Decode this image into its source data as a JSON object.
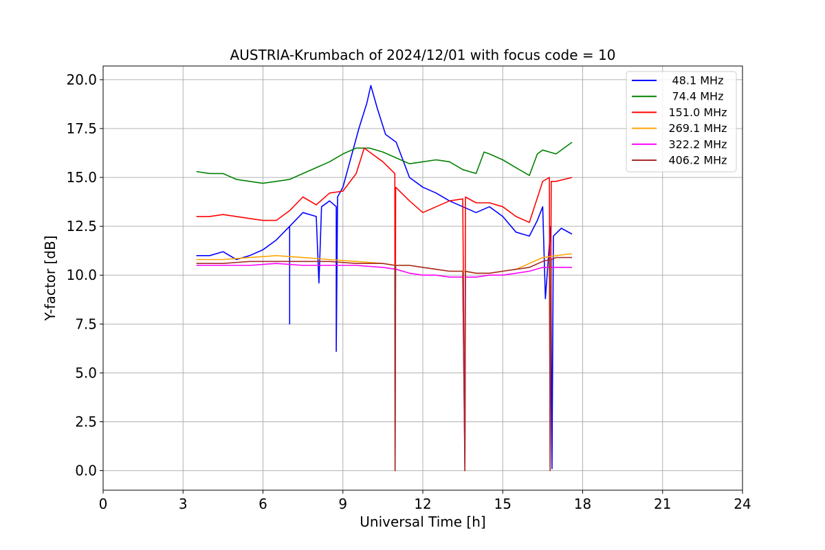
{
  "chart_data": {
    "type": "line",
    "title": "AUSTRIA-Krumbach of 2024/12/01 with focus code = 10",
    "xlabel": "Universal Time [h]",
    "ylabel": "Y-factor [dB]",
    "xlim": [
      0,
      24
    ],
    "ylim": [
      -1,
      20.7
    ],
    "xticks": [
      0,
      3,
      6,
      9,
      12,
      15,
      18,
      21,
      24
    ],
    "xtick_labels": [
      "0",
      "3",
      "6",
      "9",
      "12",
      "15",
      "18",
      "21",
      "24"
    ],
    "yticks": [
      0,
      2.5,
      5,
      7.5,
      10,
      12.5,
      15,
      17.5,
      20
    ],
    "ytick_labels": [
      "0.0",
      "2.5",
      "5.0",
      "7.5",
      "10.0",
      "12.5",
      "15.0",
      "17.5",
      "20.0"
    ],
    "grid": true,
    "legend_position": "top-right",
    "series": [
      {
        "name": "48.1 MHz",
        "color": "#0000ff",
        "x": [
          3.5,
          4.0,
          4.5,
          5.0,
          5.5,
          6.0,
          6.5,
          7.0,
          7.0,
          7.0,
          7.5,
          8.0,
          8.1,
          8.2,
          8.5,
          8.75,
          8.75,
          8.8,
          9.0,
          9.3,
          9.6,
          9.9,
          10.05,
          10.3,
          10.6,
          11.0,
          11.5,
          12.0,
          12.5,
          13.0,
          13.5,
          14.0,
          14.5,
          15.0,
          15.5,
          16.0,
          16.3,
          16.5,
          16.6,
          16.8,
          16.85,
          16.9,
          17.2,
          17.6
        ],
        "y": [
          11.0,
          11.0,
          11.2,
          10.8,
          11.0,
          11.3,
          11.8,
          12.5,
          7.5,
          12.5,
          13.2,
          13.0,
          9.6,
          13.5,
          13.8,
          13.5,
          6.1,
          14.0,
          14.5,
          16.0,
          17.5,
          18.8,
          19.7,
          18.5,
          17.2,
          16.8,
          15.0,
          14.5,
          14.2,
          13.8,
          13.5,
          13.2,
          13.5,
          13.0,
          12.2,
          12.0,
          12.8,
          13.5,
          8.8,
          12.5,
          0.1,
          12.0,
          12.4,
          12.1
        ]
      },
      {
        "name": "74.4 MHz",
        "color": "#008000",
        "x": [
          3.5,
          4.0,
          4.5,
          5.0,
          5.5,
          6.0,
          6.5,
          7.0,
          7.5,
          8.0,
          8.5,
          9.0,
          9.5,
          10.0,
          10.5,
          11.0,
          11.5,
          12.0,
          12.5,
          13.0,
          13.5,
          14.0,
          14.3,
          14.5,
          15.0,
          15.5,
          16.0,
          16.3,
          16.5,
          17.0,
          17.6
        ],
        "y": [
          15.3,
          15.2,
          15.2,
          14.9,
          14.8,
          14.7,
          14.8,
          14.9,
          15.2,
          15.5,
          15.8,
          16.2,
          16.5,
          16.5,
          16.3,
          16.0,
          15.7,
          15.8,
          15.9,
          15.8,
          15.4,
          15.2,
          16.3,
          16.2,
          15.9,
          15.5,
          15.1,
          16.2,
          16.4,
          16.2,
          16.8
        ]
      },
      {
        "name": "151.0 MHz",
        "color": "#ff0000",
        "x": [
          3.5,
          4.0,
          4.5,
          5.0,
          5.5,
          6.0,
          6.5,
          7.0,
          7.5,
          8.0,
          8.5,
          9.0,
          9.5,
          9.8,
          10.0,
          10.5,
          10.95,
          10.96,
          10.98,
          11.5,
          12.0,
          12.5,
          13.0,
          13.5,
          13.58,
          13.6,
          14.0,
          14.5,
          15.0,
          15.5,
          16.0,
          16.5,
          16.75,
          16.78,
          16.82,
          17.0,
          17.6
        ],
        "y": [
          13.0,
          13.0,
          13.1,
          13.0,
          12.9,
          12.8,
          12.8,
          13.3,
          14.0,
          13.6,
          14.2,
          14.3,
          15.2,
          16.5,
          16.3,
          15.8,
          15.2,
          0.0,
          14.5,
          13.8,
          13.2,
          13.5,
          13.8,
          13.9,
          0.0,
          14.0,
          13.7,
          13.7,
          13.5,
          13.0,
          12.7,
          14.8,
          15.0,
          0.2,
          14.8,
          14.8,
          15.0
        ]
      },
      {
        "name": "269.1 MHz",
        "color": "#ffa500",
        "x": [
          3.5,
          4.5,
          5.5,
          6.5,
          7.5,
          8.5,
          9.5,
          10.5,
          11.0,
          11.5,
          12.0,
          12.5,
          13.0,
          13.5,
          14.0,
          14.5,
          15.0,
          15.5,
          16.0,
          16.5,
          17.0,
          17.6
        ],
        "y": [
          10.8,
          10.8,
          10.9,
          11.0,
          10.9,
          10.8,
          10.7,
          10.6,
          10.5,
          10.5,
          10.4,
          10.3,
          10.2,
          10.2,
          10.1,
          10.1,
          10.2,
          10.3,
          10.6,
          10.9,
          11.0,
          11.1
        ]
      },
      {
        "name": "322.2 MHz",
        "color": "#ff00ff",
        "x": [
          3.5,
          4.5,
          5.5,
          6.5,
          7.5,
          8.5,
          9.5,
          10.5,
          11.0,
          11.5,
          12.0,
          12.5,
          13.0,
          13.5,
          13.58,
          13.6,
          14.0,
          14.5,
          15.0,
          15.5,
          16.0,
          16.5,
          17.0,
          17.6
        ],
        "y": [
          10.5,
          10.5,
          10.5,
          10.6,
          10.5,
          10.5,
          10.5,
          10.4,
          10.3,
          10.1,
          10.0,
          10.0,
          9.9,
          9.9,
          0.4,
          9.9,
          9.9,
          10.0,
          10.0,
          10.1,
          10.2,
          10.4,
          10.4,
          10.4
        ]
      },
      {
        "name": "406.2 MHz",
        "color": "#a52a2a",
        "x": [
          3.5,
          4.5,
          5.5,
          6.5,
          7.5,
          8.5,
          9.5,
          10.5,
          10.95,
          10.96,
          10.98,
          11.5,
          12.0,
          12.5,
          13.0,
          13.5,
          13.58,
          13.6,
          14.0,
          14.5,
          15.0,
          15.5,
          16.0,
          16.5,
          16.75,
          16.78,
          16.82,
          17.0,
          17.6
        ],
        "y": [
          10.6,
          10.6,
          10.7,
          10.7,
          10.7,
          10.7,
          10.6,
          10.6,
          10.5,
          0.0,
          10.5,
          10.5,
          10.4,
          10.3,
          10.2,
          10.2,
          0.0,
          10.2,
          10.1,
          10.1,
          10.2,
          10.3,
          10.4,
          10.7,
          10.8,
          0.0,
          10.8,
          10.9,
          10.9
        ]
      }
    ]
  }
}
